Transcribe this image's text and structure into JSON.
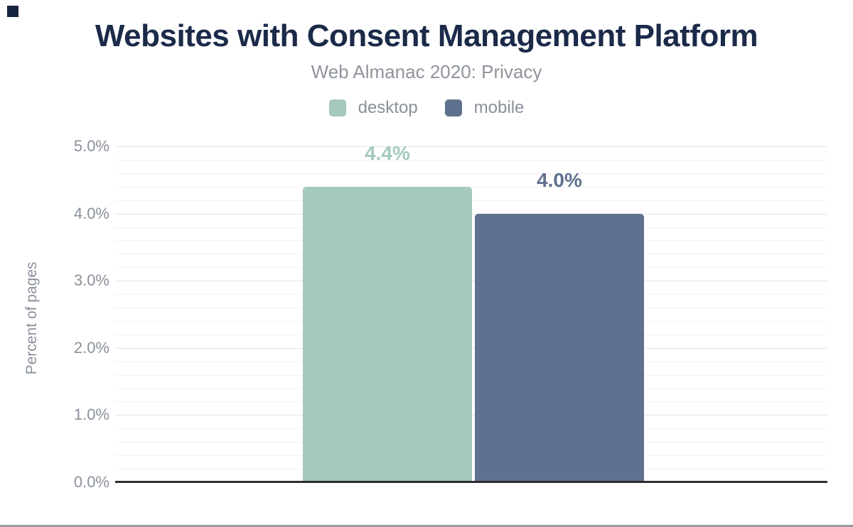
{
  "chart_data": {
    "type": "bar",
    "title": "Websites with Consent Management Platform",
    "subtitle": "Web Almanac 2020: Privacy",
    "ylabel": "Percent of pages",
    "xlabel": "",
    "categories": [
      "desktop",
      "mobile"
    ],
    "series": [
      {
        "name": "desktop",
        "values": [
          4.4
        ],
        "data_label": "4.4%",
        "color": "#a5c9ba"
      },
      {
        "name": "mobile",
        "values": [
          4.0
        ],
        "data_label": "4.0%",
        "color": "#5f718e"
      }
    ],
    "ylim": [
      0,
      5
    ],
    "yticks": [
      {
        "value": 0,
        "label": "0.0%"
      },
      {
        "value": 1,
        "label": "1.0%"
      },
      {
        "value": 2,
        "label": "2.0%"
      },
      {
        "value": 3,
        "label": "3.0%"
      },
      {
        "value": 4,
        "label": "4.0%"
      },
      {
        "value": 5,
        "label": "5.0%"
      }
    ],
    "minor_tick_step": 0.2,
    "grid": true,
    "legend_position": "top",
    "legend": [
      {
        "label": "desktop",
        "color": "#a5c9ba"
      },
      {
        "label": "mobile",
        "color": "#5f718e"
      }
    ]
  },
  "colors": {
    "title": "#1b2a49",
    "subtitle": "#8f949c",
    "axis_text": "#8a909b",
    "axis_line": "#2e2e2e",
    "grid_major": "#e5e5e5",
    "grid_minor": "#f2f2f2",
    "page_bottom_border": "#9a9a9a",
    "corner_mark": "#16243f",
    "desktop_color": "#a5c9ba",
    "mobile_color": "#5f718e"
  }
}
